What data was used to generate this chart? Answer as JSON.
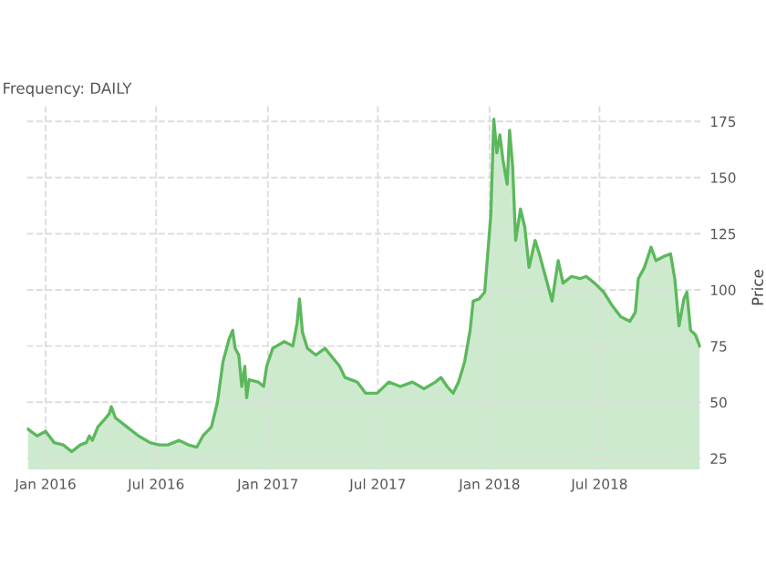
{
  "chart_data": {
    "type": "area",
    "title": "Frequency: DAILY",
    "ylabel": "Price",
    "x": [
      "2015-12-03",
      "2015-12-18",
      "2016-01-01",
      "2016-01-15",
      "2016-01-30",
      "2016-02-13",
      "2016-02-27",
      "2016-03-08",
      "2016-03-13",
      "2016-03-18",
      "2016-03-27",
      "2016-04-06",
      "2016-04-15",
      "2016-04-18",
      "2016-04-25",
      "2016-05-14",
      "2016-06-02",
      "2016-06-21",
      "2016-07-06",
      "2016-07-20",
      "2016-08-08",
      "2016-08-23",
      "2016-09-06",
      "2016-09-16",
      "2016-09-30",
      "2016-10-10",
      "2016-10-19",
      "2016-10-29",
      "2016-11-04",
      "2016-11-08",
      "2016-11-14",
      "2016-11-19",
      "2016-11-24",
      "2016-11-27",
      "2016-12-01",
      "2016-12-16",
      "2016-12-25",
      "2016-12-30",
      "2017-01-09",
      "2017-01-28",
      "2017-02-11",
      "2017-02-18",
      "2017-02-22",
      "2017-02-27",
      "2017-03-07",
      "2017-03-21",
      "2017-04-05",
      "2017-04-14",
      "2017-04-29",
      "2017-05-08",
      "2017-05-28",
      "2017-06-11",
      "2017-06-30",
      "2017-07-19",
      "2017-08-07",
      "2017-08-27",
      "2017-09-15",
      "2017-10-04",
      "2017-10-13",
      "2017-10-23",
      "2017-11-02",
      "2017-11-11",
      "2017-11-21",
      "2017-11-30",
      "2017-12-05",
      "2017-12-15",
      "2017-12-24",
      "2018-01-03",
      "2018-01-08",
      "2018-01-13",
      "2018-01-18",
      "2018-01-23",
      "2018-01-30",
      "2018-02-03",
      "2018-02-08",
      "2018-02-13",
      "2018-02-21",
      "2018-02-28",
      "2018-03-07",
      "2018-03-17",
      "2018-03-24",
      "2018-04-03",
      "2018-04-14",
      "2018-04-24",
      "2018-05-02",
      "2018-05-16",
      "2018-05-30",
      "2018-06-09",
      "2018-06-23",
      "2018-07-08",
      "2018-07-22",
      "2018-08-05",
      "2018-08-20",
      "2018-08-29",
      "2018-09-03",
      "2018-09-13",
      "2018-09-24",
      "2018-10-02",
      "2018-10-16",
      "2018-10-26",
      "2018-11-02",
      "2018-11-09",
      "2018-11-17",
      "2018-11-22",
      "2018-11-28",
      "2018-12-06",
      "2018-12-13"
    ],
    "series": [
      {
        "color": "#5cb85c",
        "values": [
          38,
          35,
          37,
          32,
          31,
          28,
          31,
          32,
          35,
          33,
          39,
          42,
          45,
          48,
          43,
          39,
          35,
          32,
          31,
          31,
          33,
          31,
          30,
          35,
          39,
          50,
          68,
          78,
          82,
          74,
          71,
          57,
          66,
          52,
          60,
          59,
          57,
          66,
          74,
          77,
          75,
          85,
          96,
          81,
          74,
          71,
          74,
          71,
          66,
          61,
          59,
          54,
          54,
          59,
          57,
          59,
          56,
          59,
          61,
          57,
          54,
          59,
          68,
          82,
          95,
          96,
          99,
          133,
          176,
          161,
          169,
          158,
          147,
          171,
          155,
          122,
          136,
          128,
          110,
          122,
          116,
          106,
          95,
          113,
          103,
          106,
          105,
          106,
          103,
          99,
          93,
          88,
          86,
          90,
          105,
          110,
          119,
          113,
          115,
          116,
          105,
          84,
          96,
          99,
          82,
          80,
          75
        ]
      }
    ],
    "xlim": [
      "2015-12-01",
      "2018-12-15"
    ],
    "xticks": [
      {
        "value": "2016-01-01",
        "label": "Jan 2016"
      },
      {
        "value": "2016-07-01",
        "label": "Jul 2016"
      },
      {
        "value": "2017-01-01",
        "label": "Jan 2017"
      },
      {
        "value": "2017-07-01",
        "label": "Jul 2017"
      },
      {
        "value": "2018-01-01",
        "label": "Jan 2018"
      },
      {
        "value": "2018-07-01",
        "label": "Jul 2018"
      }
    ],
    "ylim": [
      20,
      182
    ],
    "yticks": [
      25,
      50,
      75,
      100,
      125,
      150,
      175
    ],
    "grid": true
  }
}
